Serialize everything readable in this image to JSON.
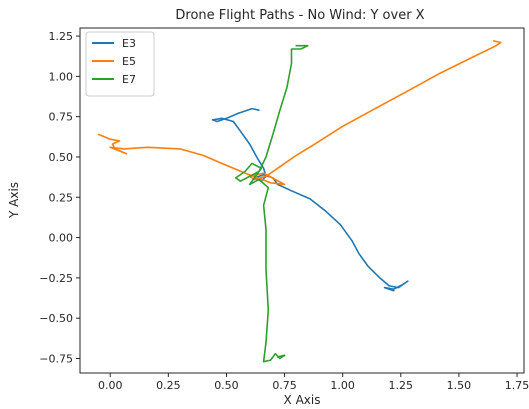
{
  "chart_data": {
    "type": "line",
    "title": "Drone Flight Paths - No Wind: Y over X",
    "xlabel": "X Axis",
    "ylabel": "Y Axis",
    "xlim": [
      -0.13,
      1.78
    ],
    "ylim": [
      -0.84,
      1.3
    ],
    "xticks": [
      0.0,
      0.25,
      0.5,
      0.75,
      1.0,
      1.25,
      1.5,
      1.75
    ],
    "xtick_labels": [
      "0.00",
      "0.25",
      "0.50",
      "0.75",
      "1.00",
      "1.25",
      "1.50",
      "1.75"
    ],
    "yticks": [
      -0.75,
      -0.5,
      -0.25,
      0.0,
      0.25,
      0.5,
      0.75,
      1.0,
      1.25
    ],
    "ytick_labels": [
      "−0.75",
      "−0.50",
      "−0.25",
      "0.00",
      "0.25",
      "0.50",
      "0.75",
      "1.00",
      "1.25"
    ],
    "grid": false,
    "legend_position": "top-left",
    "series": [
      {
        "name": "E3",
        "color": "#1f77b4",
        "points": [
          [
            0.64,
            0.79
          ],
          [
            0.61,
            0.8
          ],
          [
            0.55,
            0.77
          ],
          [
            0.5,
            0.74
          ],
          [
            0.46,
            0.72
          ],
          [
            0.44,
            0.73
          ],
          [
            0.48,
            0.74
          ],
          [
            0.53,
            0.72
          ],
          [
            0.56,
            0.66
          ],
          [
            0.6,
            0.58
          ],
          [
            0.63,
            0.5
          ],
          [
            0.66,
            0.43
          ],
          [
            0.67,
            0.38
          ],
          [
            0.65,
            0.35
          ],
          [
            0.62,
            0.37
          ],
          [
            0.66,
            0.39
          ],
          [
            0.7,
            0.37
          ],
          [
            0.72,
            0.33
          ],
          [
            0.78,
            0.29
          ],
          [
            0.86,
            0.24
          ],
          [
            0.93,
            0.16
          ],
          [
            0.99,
            0.08
          ],
          [
            1.04,
            -0.02
          ],
          [
            1.07,
            -0.1
          ],
          [
            1.11,
            -0.18
          ],
          [
            1.16,
            -0.25
          ],
          [
            1.2,
            -0.3
          ],
          [
            1.24,
            -0.31
          ],
          [
            1.28,
            -0.27
          ],
          [
            1.26,
            -0.29
          ],
          [
            1.22,
            -0.32
          ],
          [
            1.18,
            -0.31
          ],
          [
            1.22,
            -0.33
          ]
        ]
      },
      {
        "name": "E5",
        "color": "#ff7f0e",
        "points": [
          [
            1.65,
            1.22
          ],
          [
            1.68,
            1.21
          ],
          [
            1.66,
            1.19
          ],
          [
            1.56,
            1.12
          ],
          [
            1.42,
            1.02
          ],
          [
            1.28,
            0.91
          ],
          [
            1.14,
            0.8
          ],
          [
            1.0,
            0.69
          ],
          [
            0.88,
            0.58
          ],
          [
            0.8,
            0.51
          ],
          [
            0.72,
            0.43
          ],
          [
            0.67,
            0.38
          ],
          [
            0.62,
            0.36
          ],
          [
            0.6,
            0.38
          ],
          [
            0.66,
            0.4
          ],
          [
            0.71,
            0.36
          ],
          [
            0.75,
            0.33
          ],
          [
            0.69,
            0.34
          ],
          [
            0.58,
            0.4
          ],
          [
            0.48,
            0.46
          ],
          [
            0.4,
            0.51
          ],
          [
            0.3,
            0.55
          ],
          [
            0.16,
            0.56
          ],
          [
            0.06,
            0.55
          ],
          [
            0.0,
            0.56
          ],
          [
            0.07,
            0.52
          ],
          [
            0.02,
            0.55
          ],
          [
            0.01,
            0.58
          ],
          [
            0.04,
            0.6
          ],
          [
            0.0,
            0.61
          ],
          [
            -0.05,
            0.64
          ]
        ]
      },
      {
        "name": "E7",
        "color": "#2ca02c",
        "points": [
          [
            0.8,
            1.19
          ],
          [
            0.85,
            1.19
          ],
          [
            0.82,
            1.17
          ],
          [
            0.78,
            1.17
          ],
          [
            0.78,
            1.08
          ],
          [
            0.76,
            0.93
          ],
          [
            0.73,
            0.79
          ],
          [
            0.7,
            0.64
          ],
          [
            0.67,
            0.5
          ],
          [
            0.64,
            0.41
          ],
          [
            0.6,
            0.38
          ],
          [
            0.56,
            0.35
          ],
          [
            0.54,
            0.37
          ],
          [
            0.58,
            0.41
          ],
          [
            0.61,
            0.46
          ],
          [
            0.65,
            0.43
          ],
          [
            0.62,
            0.37
          ],
          [
            0.6,
            0.33
          ],
          [
            0.64,
            0.36
          ],
          [
            0.68,
            0.31
          ],
          [
            0.66,
            0.2
          ],
          [
            0.67,
            0.05
          ],
          [
            0.67,
            -0.2
          ],
          [
            0.68,
            -0.45
          ],
          [
            0.67,
            -0.65
          ],
          [
            0.66,
            -0.77
          ],
          [
            0.69,
            -0.76
          ],
          [
            0.71,
            -0.72
          ],
          [
            0.73,
            -0.75
          ],
          [
            0.75,
            -0.73
          ],
          [
            0.72,
            -0.74
          ]
        ]
      }
    ]
  }
}
